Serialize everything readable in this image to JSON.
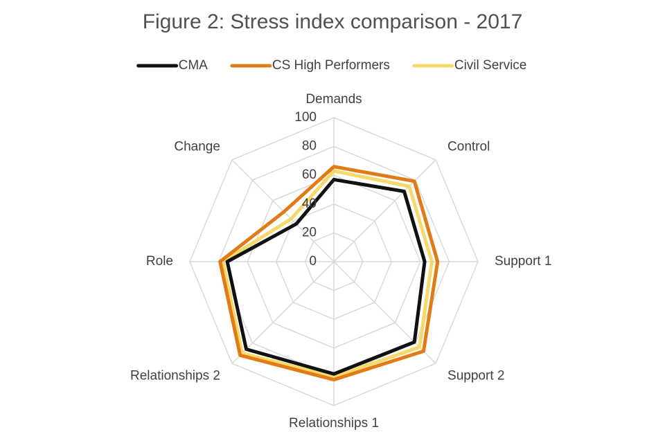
{
  "chart_data": {
    "type": "radar",
    "title": "Figure 2: Stress index comparison - 2017",
    "categories": [
      "Demands",
      "Control",
      "Support 1",
      "Support 2",
      "Relationships 1",
      "Relationships 2",
      "Role",
      "Change"
    ],
    "series": [
      {
        "name": "CMA",
        "color": "#111111",
        "values": [
          57,
          69,
          63,
          79,
          78,
          86,
          74,
          37
        ]
      },
      {
        "name": "CS High Performers",
        "color": "#e07b18",
        "values": [
          66,
          79,
          72,
          88,
          82,
          92,
          79,
          49
        ]
      },
      {
        "name": "Civil Service",
        "color": "#f6d86b",
        "values": [
          63,
          74,
          68,
          84,
          80,
          90,
          77,
          42
        ]
      }
    ],
    "ylim": [
      0,
      100
    ],
    "yticks": [
      0,
      20,
      40,
      60,
      80,
      100
    ],
    "grid": true,
    "legend": "top"
  }
}
